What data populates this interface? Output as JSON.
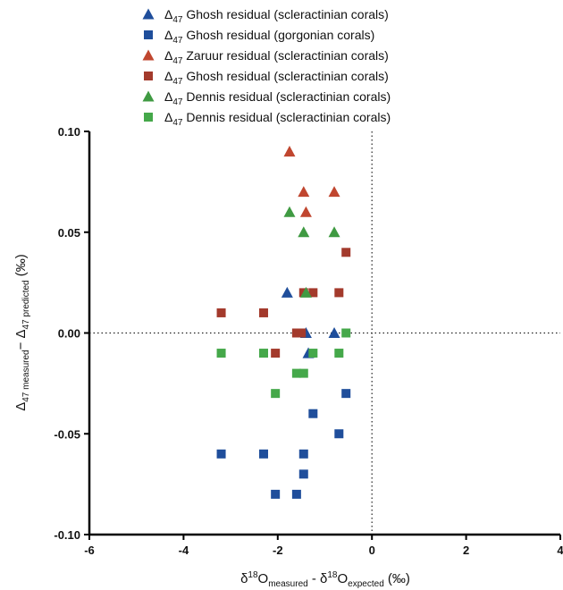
{
  "chart_data": {
    "type": "scatter",
    "xlim": [
      -6,
      4
    ],
    "ylim": [
      -0.1,
      0.1
    ],
    "xticks": [
      -6,
      -4,
      -2,
      0,
      2,
      4
    ],
    "xtick_labels": [
      "-6",
      "-4",
      "-2",
      "0",
      "2",
      "4"
    ],
    "yticks": [
      -0.1,
      -0.05,
      0.0,
      0.05,
      0.1
    ],
    "ytick_labels": [
      "-0.10",
      "-0.05",
      "0.00",
      "0.05",
      "0.10"
    ],
    "xlabel": {
      "text": "δ18Omeasured - δ18Oexpected (‰)"
    },
    "ylabel": {
      "text": "Δ47 measured− Δ47 predicted (‰)"
    },
    "reference_lines": {
      "x": 0,
      "y": 0,
      "style": "dotted"
    },
    "legend_position": "top-center",
    "series": [
      {
        "name": "Δ47 Ghosh residual (scleractinian corals)",
        "marker": "triangle",
        "color": "#1f4e9b",
        "points": [
          [
            -1.8,
            0.02
          ],
          [
            -1.4,
            0.0
          ],
          [
            -0.8,
            0.0
          ],
          [
            -1.35,
            -0.01
          ]
        ]
      },
      {
        "name": "Δ47 Ghosh residual  (gorgonian corals)",
        "marker": "square",
        "color": "#1f4e9b",
        "points": [
          [
            -3.2,
            -0.06
          ],
          [
            -2.3,
            -0.06
          ],
          [
            -2.05,
            -0.08
          ],
          [
            -1.6,
            -0.08
          ],
          [
            -1.45,
            -0.06
          ],
          [
            -1.45,
            -0.07
          ],
          [
            -1.25,
            -0.04
          ],
          [
            -0.7,
            -0.05
          ],
          [
            -0.55,
            -0.03
          ]
        ]
      },
      {
        "name": "Δ47 Zaruur residual (scleractinian corals)",
        "marker": "triangle",
        "color": "#c0462f",
        "points": [
          [
            -1.75,
            0.09
          ],
          [
            -1.45,
            0.07
          ],
          [
            -0.8,
            0.07
          ],
          [
            -1.4,
            0.06
          ]
        ]
      },
      {
        "name": "Δ47 Ghosh residual (scleractinian corals)",
        "marker": "square",
        "color": "#a33a2c",
        "points": [
          [
            -3.2,
            0.01
          ],
          [
            -2.3,
            0.01
          ],
          [
            -2.05,
            -0.01
          ],
          [
            -1.6,
            0.0
          ],
          [
            -1.5,
            0.0
          ],
          [
            -1.45,
            0.02
          ],
          [
            -1.25,
            0.02
          ],
          [
            -0.7,
            0.02
          ],
          [
            -0.55,
            0.04
          ]
        ]
      },
      {
        "name": "Δ47 Dennis residual (scleractinian corals)",
        "marker": "triangle",
        "color": "#3f9a42",
        "points": [
          [
            -1.75,
            0.06
          ],
          [
            -1.45,
            0.05
          ],
          [
            -0.8,
            0.05
          ],
          [
            -1.4,
            0.02
          ]
        ]
      },
      {
        "name": "Δ47 Dennis residual (scleractinian corals)",
        "marker": "square",
        "color": "#45a84a",
        "points": [
          [
            -3.2,
            -0.01
          ],
          [
            -2.3,
            -0.01
          ],
          [
            -2.05,
            -0.03
          ],
          [
            -1.6,
            -0.02
          ],
          [
            -1.45,
            -0.02
          ],
          [
            -1.25,
            -0.01
          ],
          [
            -0.7,
            -0.01
          ],
          [
            -0.55,
            0.0
          ]
        ]
      }
    ]
  }
}
